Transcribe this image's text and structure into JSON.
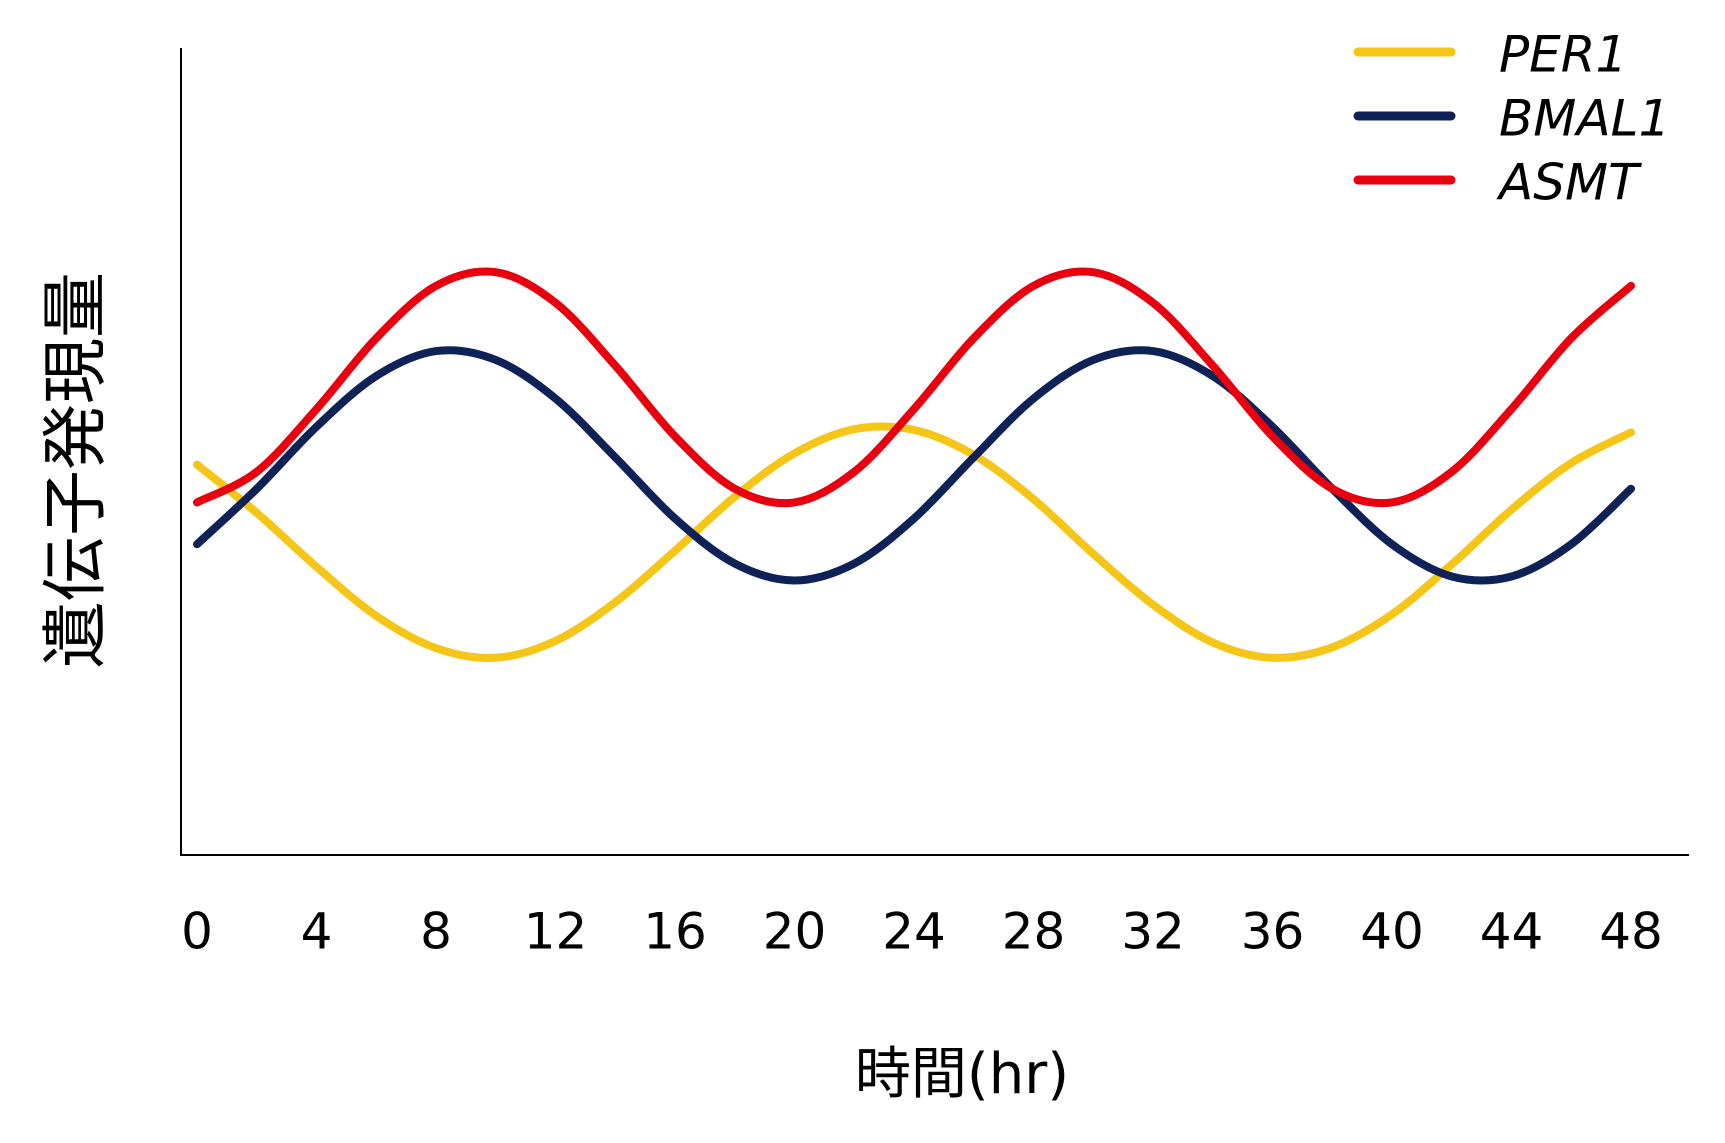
{
  "chart_data": {
    "type": "line",
    "xlabel": "時間(hr)",
    "ylabel": "遺伝子発現量",
    "x": [
      0,
      2,
      4,
      6,
      8,
      10,
      12,
      14,
      16,
      18,
      20,
      22,
      24,
      26,
      28,
      30,
      32,
      34,
      36,
      38,
      40,
      42,
      44,
      46,
      48
    ],
    "xlim": [
      0,
      48
    ],
    "xticks": [
      0,
      4,
      8,
      12,
      16,
      20,
      24,
      28,
      32,
      36,
      40,
      44,
      48
    ],
    "ylim": [
      0,
      100
    ],
    "legend": "upper right",
    "series": [
      {
        "name": "PER1",
        "color": "#f5c518",
        "values": [
          48.5,
          42.5,
          35.8,
          29.7,
          25.7,
          24.5,
          26.6,
          31.4,
          37.8,
          44.5,
          49.9,
          52.9,
          52.8,
          49.7,
          44.2,
          37.4,
          31.1,
          26.4,
          24.5,
          25.8,
          29.9,
          36.1,
          42.9,
          48.7,
          52.5
        ]
      },
      {
        "name": "BMAL1",
        "color": "#0e2258",
        "values": [
          38.6,
          45.5,
          53.2,
          59.5,
          62.6,
          61.5,
          56.7,
          49.4,
          41.8,
          36.2,
          34.1,
          36.2,
          41.8,
          49.4,
          56.7,
          61.5,
          62.6,
          59.5,
          53.2,
          45.5,
          38.6,
          34.6,
          34.6,
          38.6,
          45.5
        ]
      },
      {
        "name": "ASMT",
        "color": "#e8000f",
        "values": [
          43.8,
          47.6,
          55.4,
          64.2,
          70.7,
          72.4,
          68.6,
          60.8,
          52.0,
          45.5,
          43.8,
          47.6,
          55.4,
          64.2,
          70.7,
          72.4,
          68.6,
          60.8,
          52.0,
          45.5,
          43.8,
          47.6,
          55.4,
          64.2,
          70.7
        ]
      }
    ]
  }
}
